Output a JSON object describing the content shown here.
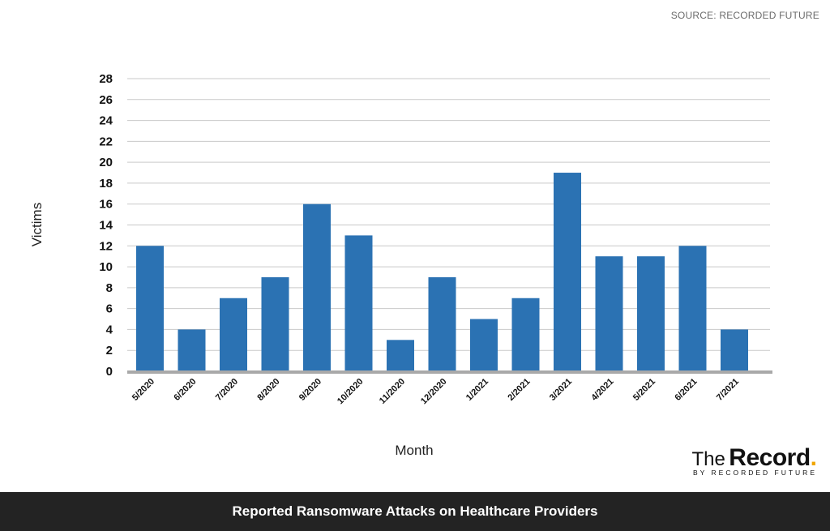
{
  "source_label": "SOURCE: RECORDED FUTURE",
  "footer_title": "Reported Ransomware Attacks on Healthcare Providers",
  "logo": {
    "the": "The",
    "record": "Record",
    "dot": ".",
    "by": "BY RECORDED FUTURE"
  },
  "colors": {
    "bar": "#2b72b3",
    "grid": "#c9c9c9",
    "baseline": "#a9a9a9",
    "footer_bg": "#232323",
    "logo_dot": "#f0a500"
  },
  "chart_data": {
    "type": "bar",
    "title": "Reported Ransomware Attacks on Healthcare Providers",
    "xlabel": "Month",
    "ylabel": "Victims",
    "categories": [
      "5/2020",
      "6/2020",
      "7/2020",
      "8/2020",
      "9/2020",
      "10/2020",
      "11/2020",
      "12/2020",
      "1/2021",
      "2/2021",
      "3/2021",
      "4/2021",
      "5/2021",
      "6/2021",
      "7/2021"
    ],
    "values": [
      12,
      4,
      7,
      9,
      16,
      13,
      3,
      9,
      5,
      7,
      19,
      11,
      11,
      12,
      4
    ],
    "ylim": [
      0,
      28
    ],
    "yticks": [
      0,
      2,
      4,
      6,
      8,
      10,
      12,
      14,
      16,
      18,
      20,
      22,
      24,
      26,
      28
    ],
    "grid": true,
    "legend": "none"
  }
}
